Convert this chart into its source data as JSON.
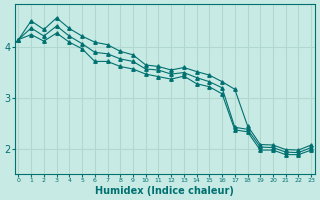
{
  "xlabel": "Humidex (Indice chaleur)",
  "bg_color": "#c8eae4",
  "grid_color": "#b0d8d0",
  "line_color": "#007070",
  "x_values": [
    0,
    1,
    2,
    3,
    4,
    5,
    6,
    7,
    8,
    9,
    10,
    11,
    12,
    13,
    14,
    15,
    16,
    17,
    18,
    19,
    20,
    21,
    22,
    23
  ],
  "line_top": [
    4.15,
    4.52,
    4.35,
    4.58,
    4.37,
    4.22,
    4.1,
    4.05,
    3.92,
    3.85,
    3.65,
    3.62,
    3.55,
    3.6,
    3.52,
    3.45,
    3.32,
    3.17,
    2.45,
    2.08,
    2.07,
    1.98,
    1.97,
    2.07
  ],
  "line_mid": [
    4.15,
    4.38,
    4.22,
    4.42,
    4.22,
    4.07,
    3.9,
    3.87,
    3.77,
    3.72,
    3.57,
    3.55,
    3.47,
    3.5,
    3.4,
    3.32,
    3.2,
    2.42,
    2.38,
    2.03,
    2.02,
    1.93,
    1.92,
    2.02
  ],
  "line_bot": [
    4.15,
    4.25,
    4.12,
    4.28,
    4.1,
    3.97,
    3.72,
    3.72,
    3.62,
    3.57,
    3.47,
    3.42,
    3.37,
    3.43,
    3.28,
    3.22,
    3.08,
    2.37,
    2.33,
    1.97,
    1.97,
    1.88,
    1.88,
    1.97
  ],
  "ylim": [
    1.5,
    4.85
  ],
  "xlim": [
    -0.3,
    23.3
  ],
  "yticks": [
    2,
    3,
    4
  ],
  "xtick_labels": [
    "0",
    "1",
    "2",
    "3",
    "4",
    "5",
    "6",
    "7",
    "8",
    "9",
    "10",
    "11",
    "12",
    "13",
    "14",
    "15",
    "16",
    "17",
    "18",
    "19",
    "20",
    "21",
    "22",
    "23"
  ],
  "marker": "^",
  "markersize": 2.5,
  "linewidth": 0.8
}
